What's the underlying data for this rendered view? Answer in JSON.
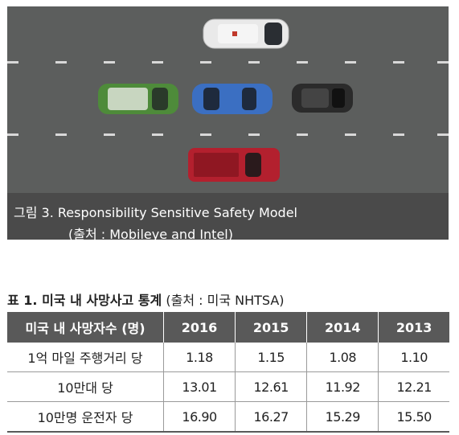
{
  "figure": {
    "caption_line1": "그림 3. Responsibility Sensitive Safety Model",
    "caption_line2": "(출처 : Mobileye and Intel)"
  },
  "table": {
    "title_bold": "표 1. 미국 내 사망사고 통계",
    "title_source": "(출처 : 미국 NHTSA)",
    "headers": [
      "미국 내 사망자수 (명)",
      "2016",
      "2015",
      "2014",
      "2013"
    ],
    "rows": [
      [
        "1억 마일 주행거리 당",
        "1.18",
        "1.15",
        "1.08",
        "1.10"
      ],
      [
        "10만대 당",
        "13.01",
        "12.61",
        "11.92",
        "12.21"
      ],
      [
        "10만명 운전자 당",
        "16.90",
        "16.27",
        "15.29",
        "15.50"
      ]
    ]
  }
}
